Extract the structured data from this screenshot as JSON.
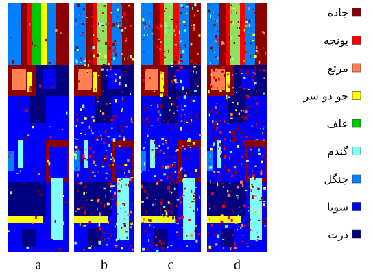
{
  "panels": [
    "a",
    "b",
    "c",
    "d"
  ],
  "legend": [
    {
      "label": "جاده",
      "color": "#8b0000"
    },
    {
      "label": "یونجه",
      "color": "#ff0000"
    },
    {
      "label": "مرتع",
      "color": "#ff8050"
    },
    {
      "label": "جو دو سر",
      "color": "#ffff00"
    },
    {
      "label": "علف",
      "color": "#00c800"
    },
    {
      "label": "گندم",
      "color": "#80ffff"
    },
    {
      "label": "جنگل",
      "color": "#0080ff"
    },
    {
      "label": "سویا",
      "color": "#0000ff"
    },
    {
      "label": "ذرت",
      "color": "#000080"
    }
  ]
}
